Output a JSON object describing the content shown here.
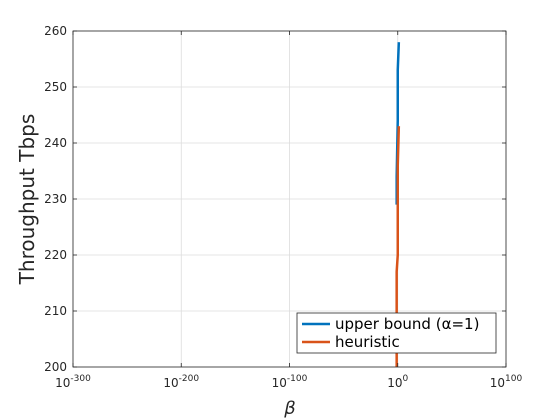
{
  "chart_data": {
    "type": "line",
    "xlabel": "β",
    "ylabel": "Throughput Tbps",
    "x_scale": "log",
    "xlim": [
      "1e-300",
      "1e100"
    ],
    "ylim": [
      200,
      260
    ],
    "x_ticks": [
      {
        "base": "10",
        "exp": "-300",
        "log10": -300
      },
      {
        "base": "10",
        "exp": "-200",
        "log10": -200
      },
      {
        "base": "10",
        "exp": "-100",
        "log10": -100
      },
      {
        "base": "10",
        "exp": "0",
        "log10": 0
      },
      {
        "base": "10",
        "exp": "100",
        "log10": 100
      }
    ],
    "y_ticks": [
      200,
      210,
      220,
      230,
      240,
      250,
      260
    ],
    "grid": true,
    "legend_position": "bottom-right",
    "series": [
      {
        "name": "upper bound (α=1)",
        "color": "#0072BD",
        "points": [
          {
            "x": "1e-1",
            "y": 229
          },
          {
            "x": "1e-1",
            "y": 234
          },
          {
            "x": "1e0",
            "y": 244
          },
          {
            "x": "1e0",
            "y": 253
          },
          {
            "x": "1e1",
            "y": 258
          }
        ]
      },
      {
        "name": "heuristic",
        "color": "#D95319",
        "points": [
          {
            "x": "1e-1",
            "y": 200
          },
          {
            "x": "1e-1",
            "y": 217
          },
          {
            "x": "1e0",
            "y": 220
          },
          {
            "x": "1e0",
            "y": 231
          },
          {
            "x": "1e0",
            "y": 236
          },
          {
            "x": "1e1",
            "y": 243
          }
        ]
      }
    ]
  }
}
